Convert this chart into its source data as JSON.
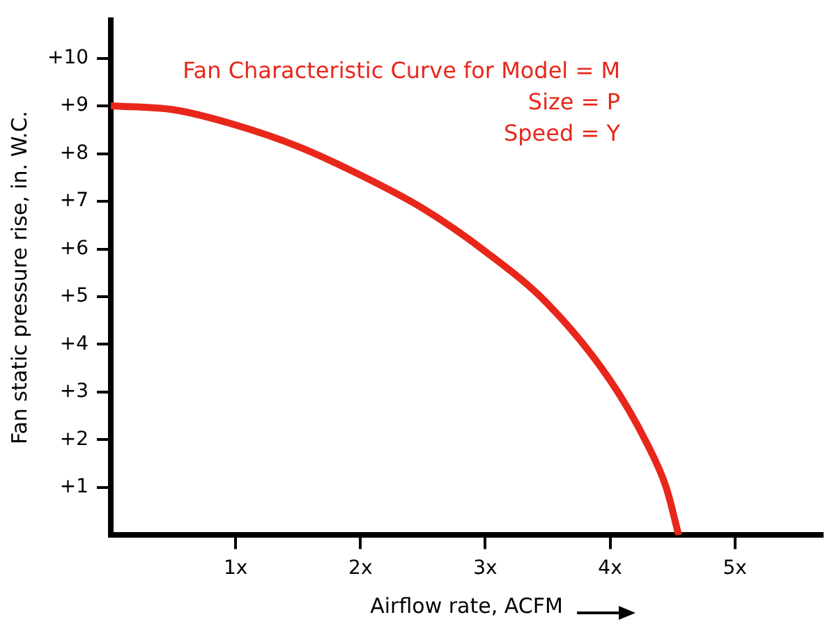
{
  "chart_data": {
    "type": "line",
    "xlabel": "Airflow rate, ACFM",
    "ylabel": "Fan static pressure rise, in. W.C.",
    "annotations": [
      "Fan Characteristic Curve for Model = M",
      "Size = P",
      "Speed = Y"
    ],
    "x": [
      0,
      0.5,
      1,
      1.5,
      2,
      2.5,
      3,
      3.5,
      4,
      4.3,
      4.45,
      4.55
    ],
    "series": [
      {
        "color": "#e8261a",
        "values": [
          9,
          8.92,
          8.6,
          8.15,
          7.55,
          6.85,
          5.95,
          4.85,
          3.25,
          1.9,
          1.0,
          0
        ]
      }
    ],
    "xlim": [
      0,
      5.7
    ],
    "ylim": [
      0,
      10.8
    ],
    "xticks": [
      {
        "value": 1,
        "label": "1x"
      },
      {
        "value": 2,
        "label": "2x"
      },
      {
        "value": 3,
        "label": "3x"
      },
      {
        "value": 4,
        "label": "4x"
      },
      {
        "value": 5,
        "label": "5x"
      }
    ],
    "yticks": [
      {
        "value": 1,
        "label": "+1"
      },
      {
        "value": 2,
        "label": "+2"
      },
      {
        "value": 3,
        "label": "+3"
      },
      {
        "value": 4,
        "label": "+4"
      },
      {
        "value": 5,
        "label": "+5"
      },
      {
        "value": 6,
        "label": "+6"
      },
      {
        "value": 7,
        "label": "+7"
      },
      {
        "value": 8,
        "label": "+8"
      },
      {
        "value": 9,
        "label": "+9"
      },
      {
        "value": 10,
        "label": "+10"
      }
    ],
    "grid": false,
    "legend": false,
    "marker": "none",
    "line_style": "solid"
  }
}
